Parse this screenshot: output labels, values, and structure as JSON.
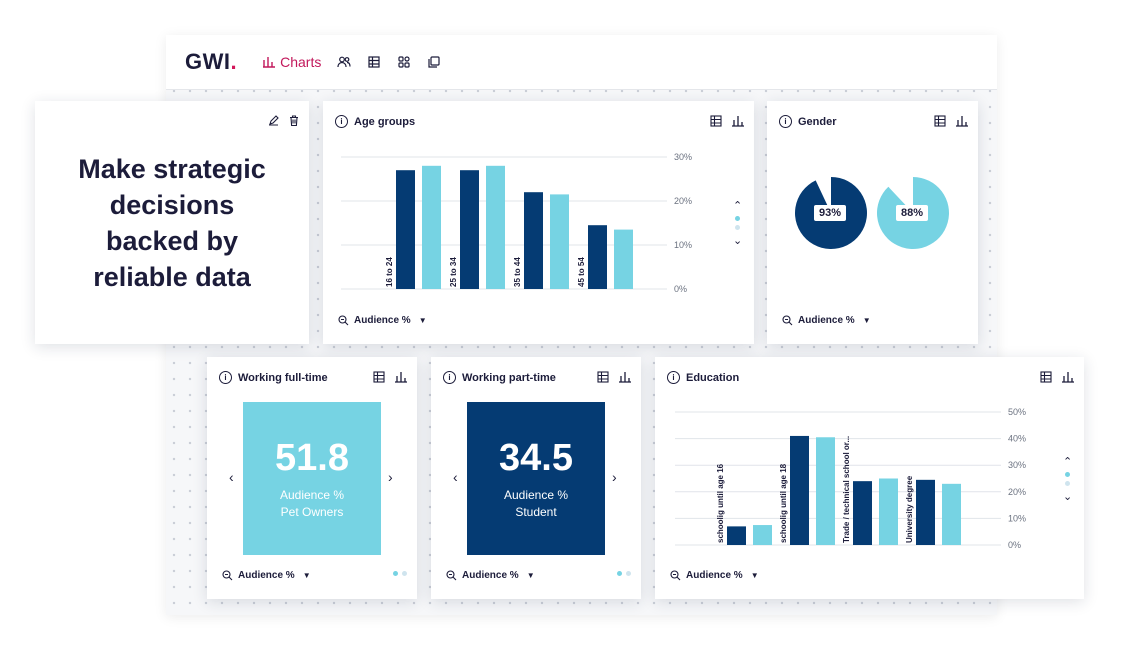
{
  "brand": {
    "logo": "GWI",
    "accent": "#d3165a"
  },
  "nav": {
    "charts_label": "Charts",
    "icons": [
      "people-icon",
      "table-icon",
      "grid-icon",
      "copy-icon"
    ]
  },
  "hero": {
    "lines": [
      "Make strategic",
      "decisions",
      "backed by",
      "reliable data"
    ]
  },
  "colors": {
    "dark": "#053b73",
    "light": "#76d3e3"
  },
  "age_card": {
    "title": "Age groups",
    "footer": "Audience %",
    "chart_data": {
      "type": "bar",
      "categories": [
        "16 to 24",
        "25 to 34",
        "35 to 44",
        "45 to 54"
      ],
      "series": [
        {
          "values": [
            27,
            27,
            22,
            14.5
          ]
        },
        {
          "values": [
            28,
            28,
            21.5,
            13.5
          ]
        }
      ],
      "ylim": [
        0,
        30
      ],
      "ticks": [
        "30%",
        "20%",
        "10%",
        "0%"
      ]
    }
  },
  "gender_card": {
    "title": "Gender",
    "footer": "Audience %",
    "pies": [
      {
        "label": "93%",
        "value": 93,
        "color": "#053b73"
      },
      {
        "label": "88%",
        "value": 88,
        "color": "#76d3e3"
      }
    ]
  },
  "fulltime_card": {
    "title": "Working full-time",
    "value": "51.8",
    "line1": "Audience %",
    "line2": "Pet Owners",
    "footer": "Audience %"
  },
  "parttime_card": {
    "title": "Working part-time",
    "value": "34.5",
    "line1": "Audience %",
    "line2": "Student",
    "footer": "Audience %"
  },
  "education_card": {
    "title": "Education",
    "footer": "Audience %",
    "chart_data": {
      "type": "bar",
      "categories": [
        "schoolig until age 16",
        "schoolig until age 18",
        "Trade / technical school or...",
        "University degree"
      ],
      "series": [
        {
          "values": [
            7,
            41,
            24,
            24.5
          ]
        },
        {
          "values": [
            7.5,
            40.5,
            25,
            23
          ]
        }
      ],
      "ylim": [
        0,
        50
      ],
      "ticks": [
        "50%",
        "40%",
        "30%",
        "20%",
        "10%",
        "0%"
      ]
    }
  }
}
